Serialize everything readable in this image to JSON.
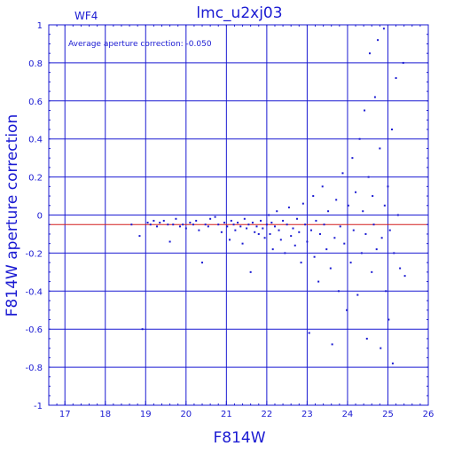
{
  "chart_data": {
    "type": "scatter",
    "title": "lmc_u2xj03",
    "panel_label": "WF4",
    "annotation": "Average aperture correction: -0.050",
    "xlabel": "F814W",
    "ylabel": "F814W aperture correction",
    "xlim": [
      16.6,
      26.0
    ],
    "ylim": [
      -1.0,
      1.0
    ],
    "x_ticks": [
      17,
      18,
      19,
      20,
      21,
      22,
      23,
      24,
      25,
      26
    ],
    "y_ticks": [
      -1,
      -0.8,
      -0.6,
      -0.4,
      -0.2,
      0,
      0.2,
      0.4,
      0.6,
      0.8,
      1
    ],
    "y_tick_labels": [
      "-1",
      "-0.8",
      "-0.6",
      "-0.4",
      "-0.2",
      "0",
      "0.2",
      "0.4",
      "0.6",
      "0.8",
      "1"
    ],
    "grid": true,
    "reference_line": {
      "y": -0.05,
      "color": "#d21e1e"
    },
    "colors": {
      "axes": "#1a1ad2",
      "points": "#1a1ad2",
      "reference": "#d21e1e"
    },
    "points": [
      [
        18.65,
        -0.05
      ],
      [
        18.85,
        -0.11
      ],
      [
        18.92,
        -0.6
      ],
      [
        19.05,
        -0.04
      ],
      [
        19.12,
        -0.05
      ],
      [
        19.2,
        -0.03
      ],
      [
        19.28,
        -0.06
      ],
      [
        19.35,
        -0.04
      ],
      [
        19.45,
        -0.03
      ],
      [
        19.55,
        -0.05
      ],
      [
        19.6,
        -0.14
      ],
      [
        19.68,
        -0.05
      ],
      [
        19.75,
        -0.02
      ],
      [
        19.85,
        -0.06
      ],
      [
        19.92,
        -0.05
      ],
      [
        20.0,
        -0.07
      ],
      [
        20.1,
        -0.04
      ],
      [
        20.18,
        -0.05
      ],
      [
        20.25,
        -0.03
      ],
      [
        20.32,
        -0.08
      ],
      [
        20.4,
        -0.25
      ],
      [
        20.48,
        -0.05
      ],
      [
        20.55,
        -0.06
      ],
      [
        20.6,
        -0.02
      ],
      [
        20.72,
        -0.01
      ],
      [
        20.8,
        -0.05
      ],
      [
        20.88,
        -0.09
      ],
      [
        20.95,
        -0.04
      ],
      [
        21.02,
        -0.06
      ],
      [
        21.08,
        -0.13
      ],
      [
        21.12,
        -0.03
      ],
      [
        21.18,
        -0.05
      ],
      [
        21.22,
        -0.08
      ],
      [
        21.28,
        -0.04
      ],
      [
        21.35,
        -0.06
      ],
      [
        21.4,
        -0.15
      ],
      [
        21.45,
        -0.02
      ],
      [
        21.5,
        -0.07
      ],
      [
        21.55,
        -0.05
      ],
      [
        21.6,
        -0.3
      ],
      [
        21.65,
        -0.04
      ],
      [
        21.7,
        -0.09
      ],
      [
        21.75,
        -0.06
      ],
      [
        21.8,
        -0.1
      ],
      [
        21.85,
        -0.03
      ],
      [
        21.9,
        -0.07
      ],
      [
        21.95,
        -0.12
      ],
      [
        22.0,
        -0.05
      ],
      [
        22.05,
        0.0
      ],
      [
        22.08,
        -0.1
      ],
      [
        22.12,
        -0.04
      ],
      [
        22.15,
        -0.18
      ],
      [
        22.2,
        -0.06
      ],
      [
        22.25,
        0.02
      ],
      [
        22.3,
        -0.08
      ],
      [
        22.35,
        -0.13
      ],
      [
        22.4,
        -0.03
      ],
      [
        22.45,
        -0.2
      ],
      [
        22.5,
        -0.05
      ],
      [
        22.55,
        0.04
      ],
      [
        22.6,
        -0.11
      ],
      [
        22.65,
        -0.07
      ],
      [
        22.7,
        -0.16
      ],
      [
        22.75,
        -0.02
      ],
      [
        22.8,
        -0.09
      ],
      [
        22.85,
        -0.25
      ],
      [
        22.9,
        0.06
      ],
      [
        22.95,
        -0.05
      ],
      [
        23.0,
        -0.14
      ],
      [
        23.05,
        -0.62
      ],
      [
        23.1,
        -0.08
      ],
      [
        23.15,
        0.1
      ],
      [
        23.18,
        -0.22
      ],
      [
        23.22,
        -0.03
      ],
      [
        23.28,
        -0.35
      ],
      [
        23.32,
        -0.1
      ],
      [
        23.38,
        0.15
      ],
      [
        23.42,
        -0.05
      ],
      [
        23.48,
        -0.18
      ],
      [
        23.52,
        0.02
      ],
      [
        23.58,
        -0.28
      ],
      [
        23.62,
        -0.68
      ],
      [
        23.68,
        -0.12
      ],
      [
        23.72,
        0.08
      ],
      [
        23.78,
        -0.4
      ],
      [
        23.82,
        -0.06
      ],
      [
        23.88,
        0.22
      ],
      [
        23.92,
        -0.15
      ],
      [
        23.98,
        -0.5
      ],
      [
        24.02,
        0.05
      ],
      [
        24.08,
        -0.25
      ],
      [
        24.12,
        0.3
      ],
      [
        24.15,
        -0.08
      ],
      [
        24.2,
        0.12
      ],
      [
        24.25,
        -0.42
      ],
      [
        24.3,
        0.4
      ],
      [
        24.35,
        -0.2
      ],
      [
        24.38,
        0.02
      ],
      [
        24.42,
        0.55
      ],
      [
        24.45,
        -0.1
      ],
      [
        24.48,
        -0.65
      ],
      [
        24.52,
        0.2
      ],
      [
        24.55,
        0.85
      ],
      [
        24.6,
        -0.3
      ],
      [
        24.62,
        0.1
      ],
      [
        24.65,
        -0.05
      ],
      [
        24.68,
        0.62
      ],
      [
        24.72,
        -0.18
      ],
      [
        24.75,
        0.92
      ],
      [
        24.8,
        0.35
      ],
      [
        24.82,
        -0.7
      ],
      [
        24.85,
        -0.12
      ],
      [
        24.9,
        0.98
      ],
      [
        24.92,
        0.05
      ],
      [
        24.95,
        -0.4
      ],
      [
        25.0,
        0.15
      ],
      [
        25.02,
        -0.55
      ],
      [
        25.05,
        -0.08
      ],
      [
        25.1,
        0.45
      ],
      [
        25.12,
        -0.78
      ],
      [
        25.15,
        -0.2
      ],
      [
        25.2,
        0.72
      ],
      [
        25.25,
        0.0
      ],
      [
        25.3,
        -0.28
      ],
      [
        25.38,
        0.8
      ],
      [
        25.42,
        -0.32
      ]
    ]
  }
}
